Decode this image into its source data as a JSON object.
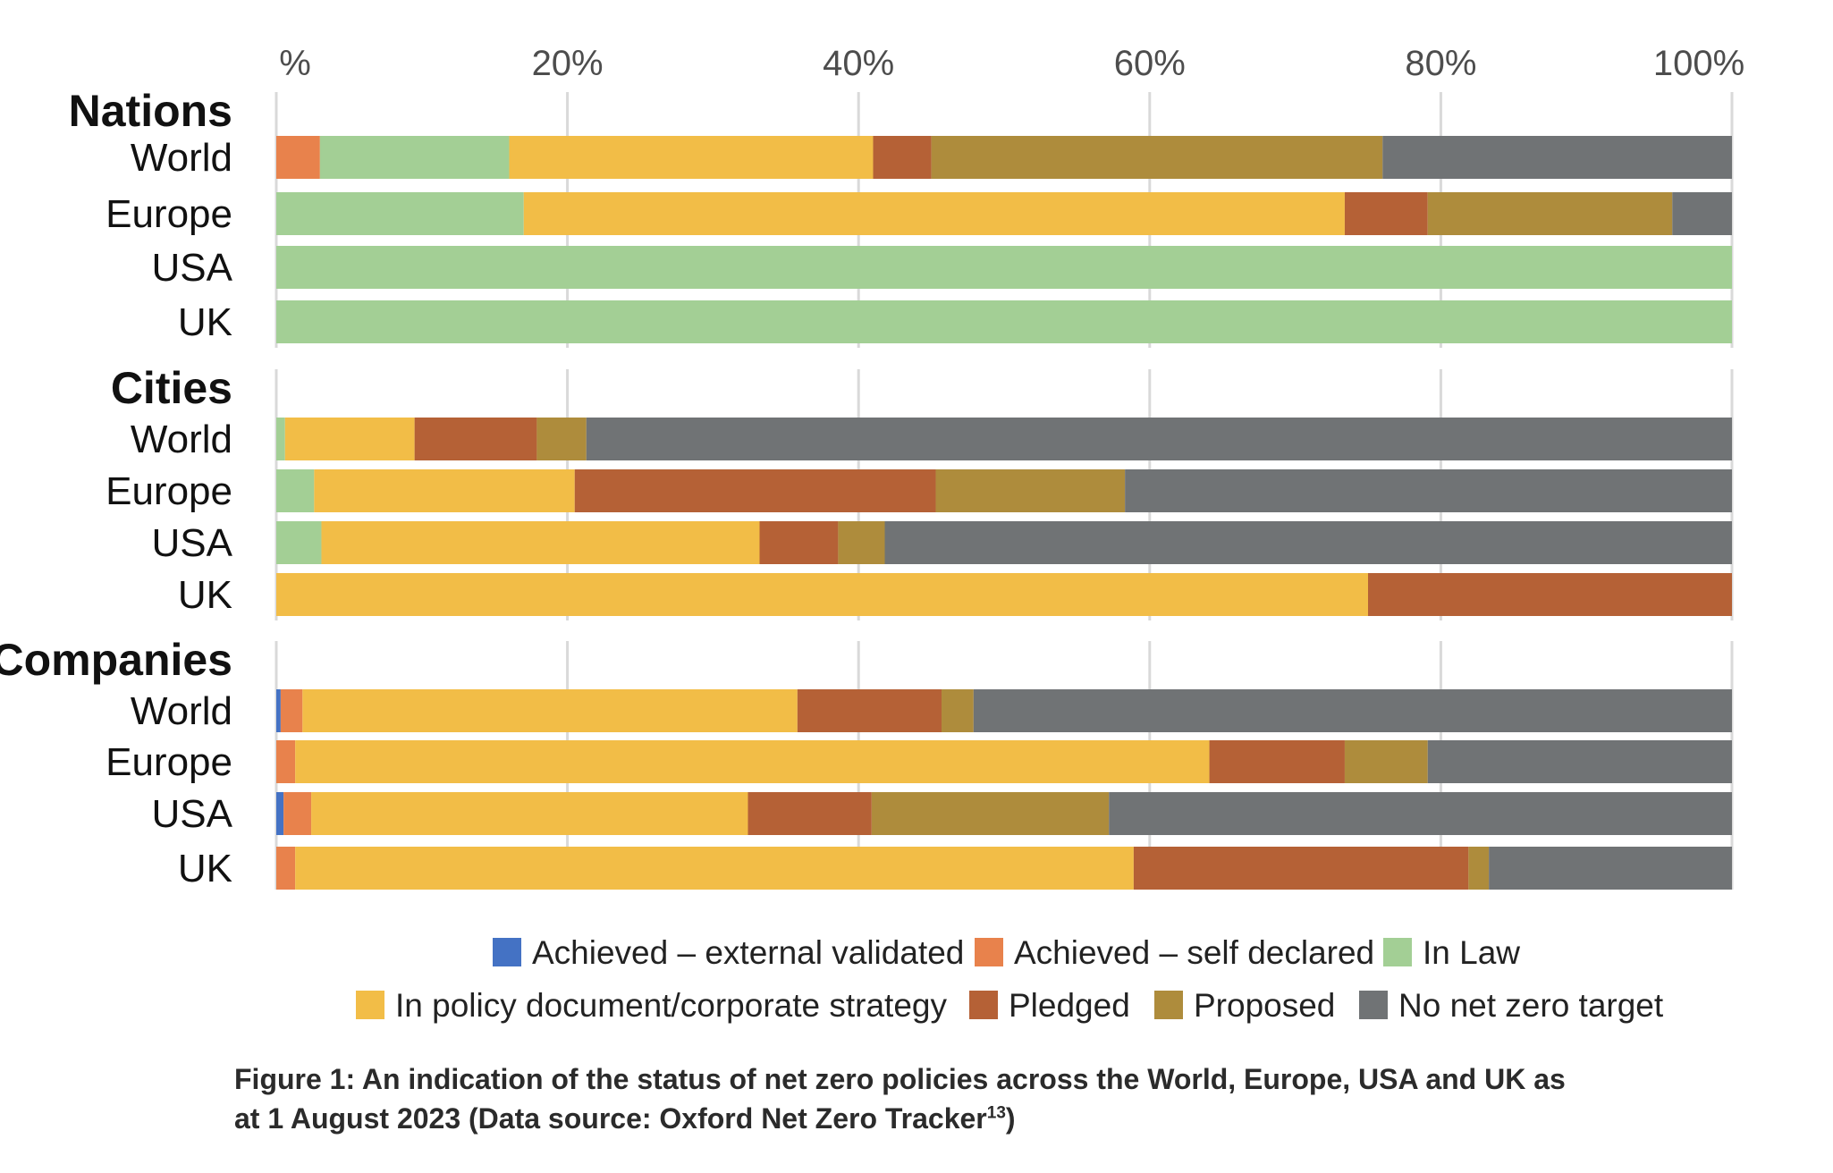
{
  "chart_data": {
    "type": "bar",
    "orientation": "horizontal",
    "stacked": true,
    "xlim": [
      0,
      100
    ],
    "x_ticks": [
      "%",
      "20%",
      "40%",
      "60%",
      "80%",
      "100%"
    ],
    "x_tick_values": [
      0,
      20,
      40,
      60,
      80,
      100
    ],
    "grid": true,
    "legend_position": "bottom",
    "series": [
      {
        "name": "Achieved – external validated",
        "color": "#4472c4"
      },
      {
        "name": "Achieved – self declared",
        "color": "#e8824c"
      },
      {
        "name": "In Law",
        "color": "#a3cf95"
      },
      {
        "name": "In policy document/corporate strategy",
        "color": "#f2bd47"
      },
      {
        "name": "Pledged",
        "color": "#b56136"
      },
      {
        "name": "Proposed",
        "color": "#ae8c3c"
      },
      {
        "name": "No net zero target",
        "color": "#707375"
      }
    ],
    "groups": [
      {
        "label": "Nations",
        "categories": [
          {
            "label": "World",
            "values": [
              0,
              3,
              13,
              25,
              4,
              31,
              24
            ]
          },
          {
            "label": "Europe",
            "values": [
              0,
              0,
              17,
              56.4,
              5.7,
              16.8,
              4.5
            ]
          },
          {
            "label": "USA",
            "values": [
              0,
              0,
              100,
              0,
              0,
              0,
              0
            ]
          },
          {
            "label": "UK",
            "values": [
              0,
              0,
              100,
              0,
              0,
              0,
              0
            ]
          }
        ]
      },
      {
        "label": "Cities",
        "categories": [
          {
            "label": "World",
            "values": [
              0,
              0,
              0.6,
              8.9,
              8.4,
              3.4,
              78.7
            ]
          },
          {
            "label": "Europe",
            "values": [
              0,
              0,
              2.6,
              17.9,
              24.8,
              13,
              41.7
            ]
          },
          {
            "label": "USA",
            "values": [
              0,
              0,
              3.1,
              30.1,
              5.4,
              3.2,
              58.2
            ]
          },
          {
            "label": "UK",
            "values": [
              0,
              0,
              0,
              75,
              25,
              0,
              0
            ]
          }
        ]
      },
      {
        "label": "Companies",
        "categories": [
          {
            "label": "World",
            "values": [
              0.3,
              1.5,
              0,
              34,
              9.9,
              2.2,
              52.1
            ]
          },
          {
            "label": "Europe",
            "values": [
              0,
              1.3,
              0,
              62.8,
              9.3,
              5.7,
              20.9
            ]
          },
          {
            "label": "USA",
            "values": [
              0.5,
              1.9,
              0,
              30,
              8.5,
              16.3,
              42.8
            ]
          },
          {
            "label": "UK",
            "values": [
              0,
              1.3,
              0,
              57.6,
              23,
              1.4,
              16.7
            ]
          }
        ]
      }
    ]
  },
  "caption": {
    "text": "Figure 1: An indication of the status of net zero policies across the World, Europe, USA and UK as at 1 August 2023 (Data source: Oxford Net Zero Tracker",
    "superscript": "13",
    "suffix": ")"
  }
}
